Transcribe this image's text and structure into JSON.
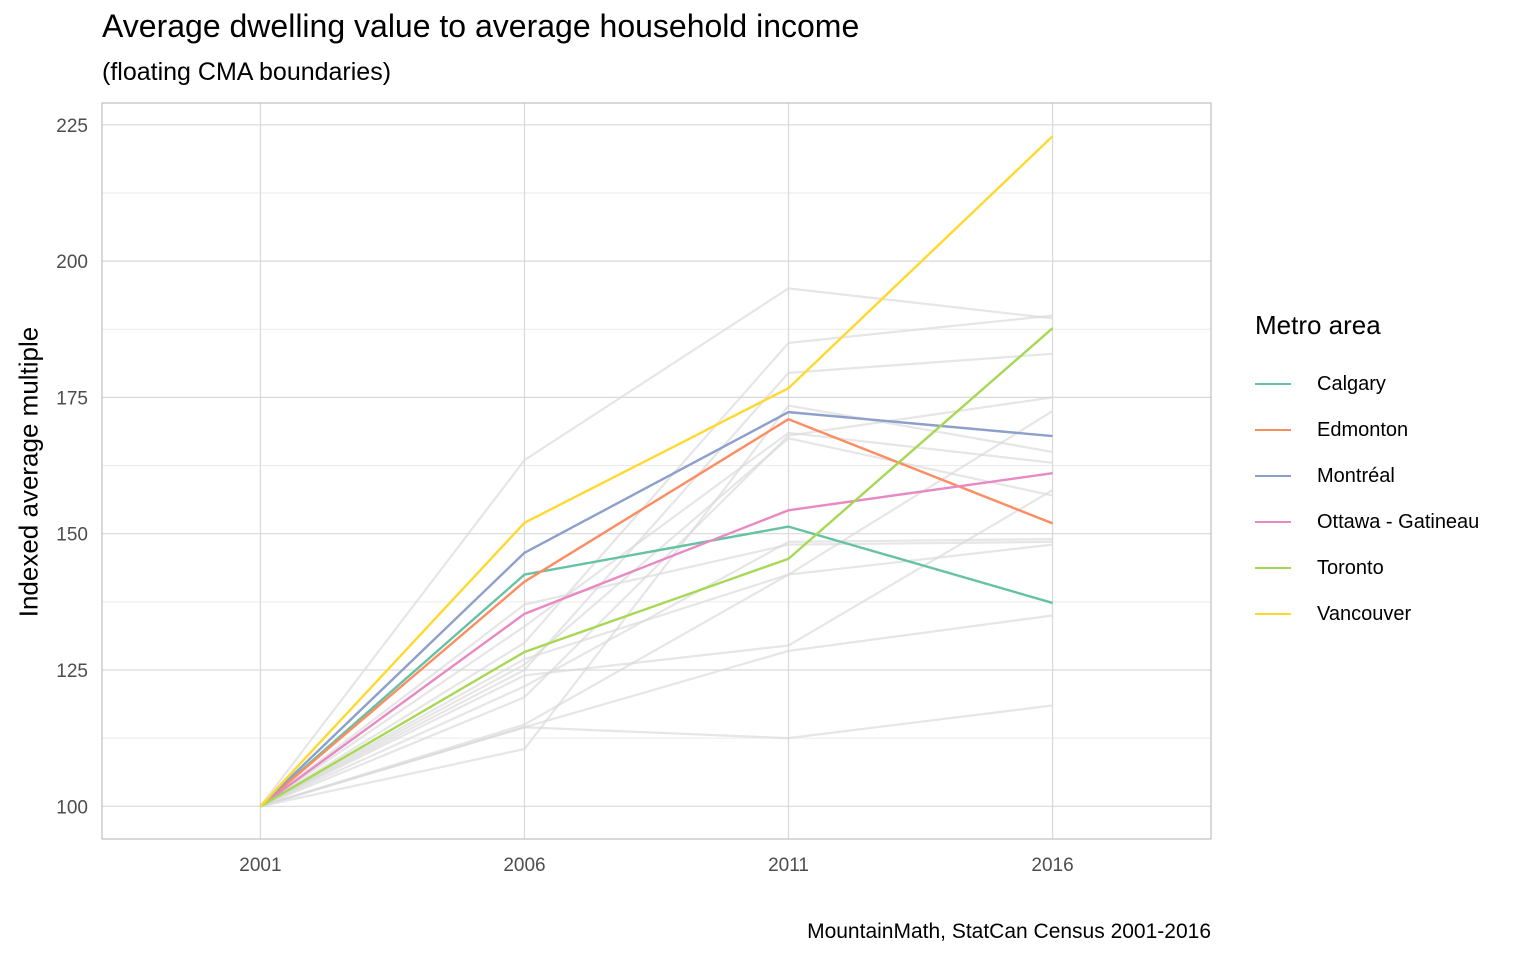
{
  "chart_data": {
    "type": "line",
    "title": "Average dwelling value to average household income",
    "subtitle": "(floating CMA boundaries)",
    "xlabel": "",
    "ylabel": "Indexed average multiple",
    "caption": "MountainMath, StatCan Census 2001-2016",
    "x": [
      2001,
      2006,
      2011,
      2016
    ],
    "x_ticks": [
      "2001",
      "2006",
      "2011",
      "2016"
    ],
    "y_ticks": [
      100,
      125,
      150,
      175,
      200,
      225
    ],
    "xlim": [
      1998,
      2019
    ],
    "ylim": [
      94,
      229
    ],
    "grid": true,
    "legend": {
      "title": "Metro area",
      "position": "right"
    },
    "series": [
      {
        "name": "Calgary",
        "color": "#66C2A5",
        "values": [
          100,
          142.5,
          151.3,
          137.3
        ]
      },
      {
        "name": "Edmonton",
        "color": "#FC8D62",
        "values": [
          100,
          141.2,
          171.0,
          151.9
        ]
      },
      {
        "name": "Montréal",
        "color": "#8DA0CB",
        "values": [
          100,
          146.5,
          172.3,
          167.9
        ]
      },
      {
        "name": "Ottawa - Gatineau",
        "color": "#E78AC3",
        "values": [
          100,
          135.3,
          154.3,
          161.1
        ]
      },
      {
        "name": "Toronto",
        "color": "#A6D854",
        "values": [
          100,
          128.3,
          145.4,
          187.7
        ]
      },
      {
        "name": "Vancouver",
        "color": "#FFD92F",
        "values": [
          100,
          152.0,
          176.7,
          222.9
        ]
      }
    ],
    "background_series_color": "#D9D9D9",
    "background_series": [
      [
        100,
        163.5,
        195.0,
        189.5
      ],
      [
        100,
        130.0,
        185.0,
        190.0
      ],
      [
        100,
        125.0,
        179.5,
        183.0
      ],
      [
        100,
        120.0,
        168.0,
        175.0
      ],
      [
        100,
        133.0,
        168.5,
        163.0
      ],
      [
        100,
        126.0,
        167.5,
        157.0
      ],
      [
        100,
        122.0,
        148.5,
        149.0
      ],
      [
        100,
        115.0,
        142.5,
        172.5
      ],
      [
        100,
        124.0,
        129.5,
        158.0
      ],
      [
        100,
        110.5,
        173.5,
        165.0
      ],
      [
        100,
        127.0,
        142.5,
        148.0
      ],
      [
        100,
        114.5,
        128.5,
        135.0
      ],
      [
        100,
        114.5,
        112.5,
        118.5
      ],
      [
        100,
        137.0,
        148.0,
        148.5
      ]
    ]
  }
}
